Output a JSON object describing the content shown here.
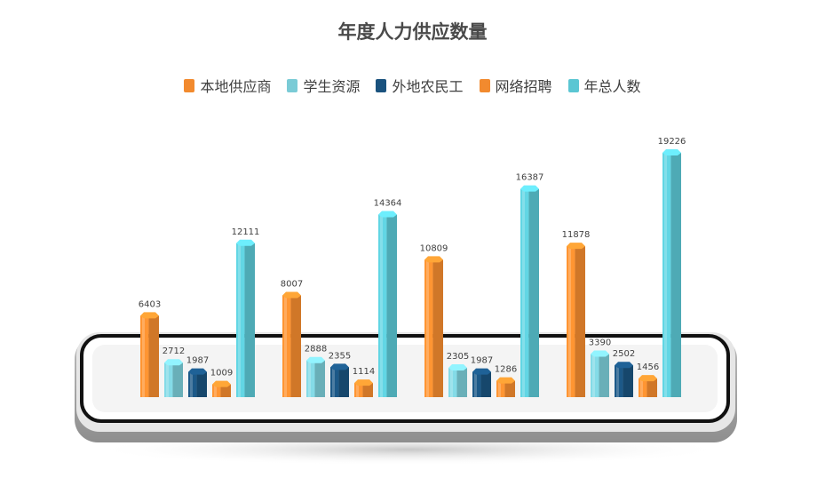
{
  "chart_data": {
    "type": "bar",
    "title": "年度人力供应数量",
    "categories": [
      "",
      "",
      "",
      ""
    ],
    "series": [
      {
        "name": "本地供应商",
        "color": "#F28A2E",
        "values": [
          6403,
          8007,
          10809,
          11878
        ]
      },
      {
        "name": "学生资源",
        "color": "#7ACBD6",
        "values": [
          2712,
          2888,
          2305,
          3390
        ]
      },
      {
        "name": "外地农民工",
        "color": "#1A527E",
        "values": [
          1987,
          2355,
          1987,
          2502
        ]
      },
      {
        "name": "网络招聘",
        "color": "#F28A2E",
        "values": [
          1009,
          1114,
          1286,
          1456
        ]
      },
      {
        "name": "年总人数",
        "color": "#5BC6D3",
        "values": [
          12111,
          14364,
          16387,
          19226
        ]
      }
    ],
    "data_labels": true,
    "legend_position": "top",
    "ylim": [
      0,
      19226
    ],
    "grid": false
  }
}
